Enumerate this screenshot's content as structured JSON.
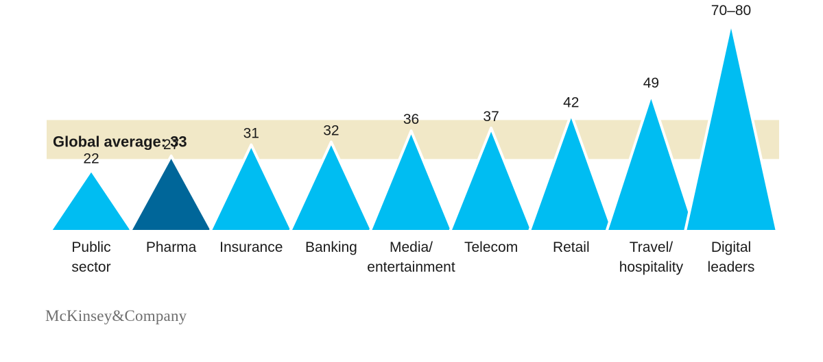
{
  "chart_data": {
    "type": "bar",
    "categories": [
      "Public sector",
      "Pharma",
      "Insurance",
      "Banking",
      "Media/ entertainment",
      "Telecom",
      "Retail",
      "Travel/ hospitality",
      "Digital leaders"
    ],
    "category_lines": [
      [
        "Public",
        "sector"
      ],
      [
        "Pharma"
      ],
      [
        "Insurance"
      ],
      [
        "Banking"
      ],
      [
        "Media/",
        "entertainment"
      ],
      [
        "Telecom"
      ],
      [
        "Retail"
      ],
      [
        "Travel/",
        "hospitality"
      ],
      [
        "Digital",
        "leaders"
      ]
    ],
    "values": [
      22,
      27,
      31,
      32,
      36,
      37,
      42,
      49,
      75
    ],
    "value_labels": [
      "22",
      "27",
      "31",
      "32",
      "36",
      "37",
      "42",
      "49",
      "70–80"
    ],
    "highlight_index": 1,
    "reference": {
      "label": "Global average: 33",
      "value": 33
    },
    "ylim": [
      0,
      76
    ],
    "grid": false,
    "legend": "none"
  },
  "colors": {
    "bar": "#00BDF2",
    "highlight": "#006699",
    "band": "#F1E8C7",
    "bar_outline": "#ffffff"
  },
  "brand": "McKinsey&Company"
}
